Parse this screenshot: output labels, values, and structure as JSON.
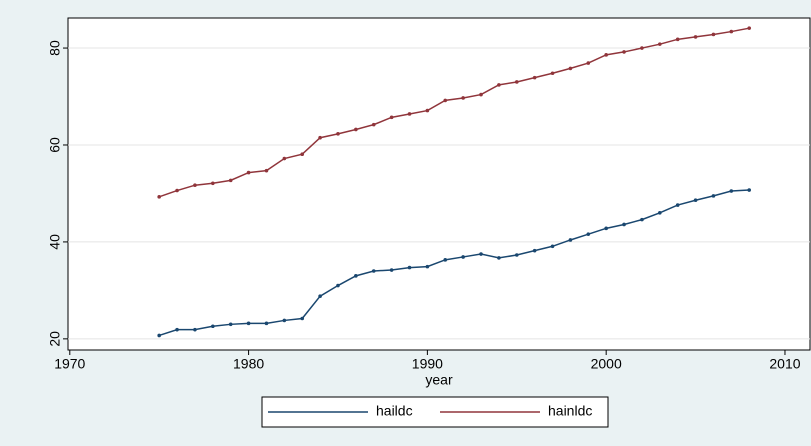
{
  "chart_data": {
    "type": "line",
    "x_label": "year",
    "x": [
      1975,
      1976,
      1977,
      1978,
      1979,
      1980,
      1981,
      1982,
      1983,
      1984,
      1985,
      1986,
      1987,
      1988,
      1989,
      1990,
      1991,
      1992,
      1993,
      1994,
      1995,
      1996,
      1997,
      1998,
      1999,
      2000,
      2001,
      2002,
      2003,
      2004,
      2005,
      2006,
      2007,
      2008
    ],
    "series": [
      {
        "name": "haildc",
        "color": "#1a476f",
        "values": [
          20.7,
          21.9,
          21.9,
          22.6,
          23.0,
          23.2,
          23.2,
          23.8,
          24.2,
          28.8,
          31.0,
          33.0,
          34.0,
          34.2,
          34.7,
          34.9,
          36.3,
          36.9,
          37.5,
          36.7,
          37.3,
          38.2,
          39.1,
          40.4,
          41.6,
          42.8,
          43.6,
          44.6,
          46.0,
          47.6,
          48.6,
          49.5,
          50.5,
          50.7
        ]
      },
      {
        "name": "hainldc",
        "color": "#90353b",
        "values": [
          49.3,
          50.6,
          51.7,
          52.1,
          52.7,
          54.3,
          54.7,
          57.2,
          58.1,
          61.5,
          62.3,
          63.2,
          64.2,
          65.7,
          66.4,
          67.1,
          69.2,
          69.7,
          70.4,
          72.4,
          73.0,
          73.9,
          74.8,
          75.8,
          76.9,
          78.6,
          79.2,
          80.0,
          80.8,
          81.8,
          82.3,
          82.8,
          83.4,
          84.1
        ]
      }
    ],
    "xlim": [
      1969.9,
      2011.4
    ],
    "xticks": [
      1970,
      1980,
      1990,
      2000,
      2010
    ],
    "ylim": [
      17.7,
      86.2
    ],
    "yticks": [
      20,
      40,
      60,
      80
    ],
    "grid": true,
    "legend": "bottom"
  }
}
